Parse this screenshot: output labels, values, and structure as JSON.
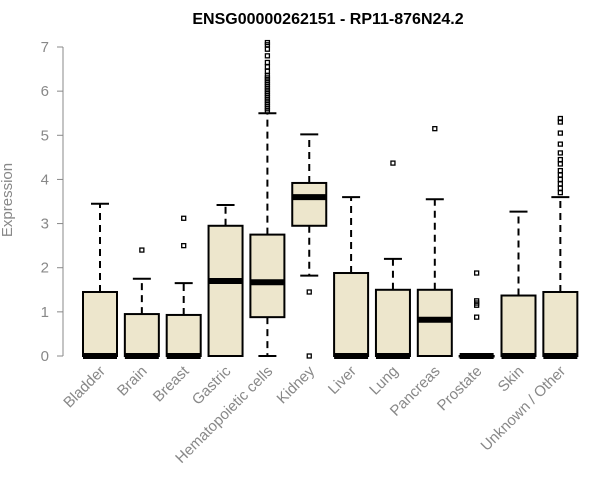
{
  "chart_data": {
    "type": "boxplot",
    "title": "ENSG00000262151 - RP11-876N24.2",
    "ylabel": "Expression",
    "xlabel": "",
    "ylim": [
      0,
      7
    ],
    "yticks": [
      0,
      1,
      2,
      3,
      4,
      5,
      6,
      7
    ],
    "grid": false,
    "colors": {
      "box_fill": "#EDE6CC",
      "box_stroke": "#000000",
      "axis": "#888888",
      "text": "#888888"
    },
    "categories": [
      "Bladder",
      "Brain",
      "Breast",
      "Gastric",
      "Hematopoietic cells",
      "Kidney",
      "Liver",
      "Lung",
      "Pancreas",
      "Prostate",
      "Skin",
      "Unknown / Other"
    ],
    "boxes": [
      {
        "name": "Bladder",
        "min": 0,
        "q1": 0,
        "median": 0,
        "q3": 1.45,
        "max": 3.45,
        "outliers": []
      },
      {
        "name": "Brain",
        "min": 0,
        "q1": 0,
        "median": 0,
        "q3": 0.95,
        "max": 1.75,
        "outliers": [
          2.4
        ]
      },
      {
        "name": "Breast",
        "min": 0,
        "q1": 0,
        "median": 0,
        "q3": 0.93,
        "max": 1.65,
        "outliers": [
          2.5,
          3.12
        ]
      },
      {
        "name": "Gastric",
        "min": 0,
        "q1": 0,
        "median": 1.7,
        "q3": 2.95,
        "max": 3.42,
        "outliers": []
      },
      {
        "name": "Hematopoietic cells",
        "min": 0,
        "q1": 0.88,
        "median": 1.67,
        "q3": 2.75,
        "max": 5.5,
        "outliers": [
          5.55,
          5.6,
          5.65,
          5.7,
          5.75,
          5.8,
          5.85,
          5.9,
          5.95,
          6.0,
          6.05,
          6.1,
          6.15,
          6.2,
          6.25,
          6.3,
          6.35,
          6.45,
          6.55,
          6.65,
          6.8,
          6.95,
          7.05,
          7.1
        ]
      },
      {
        "name": "Kidney",
        "min": 1.82,
        "q1": 2.95,
        "median": 3.6,
        "q3": 3.92,
        "max": 5.02,
        "outliers": [
          1.45,
          0.0
        ]
      },
      {
        "name": "Liver",
        "min": 0,
        "q1": 0,
        "median": 0,
        "q3": 1.88,
        "max": 3.6,
        "outliers": []
      },
      {
        "name": "Lung",
        "min": 0,
        "q1": 0,
        "median": 0,
        "q3": 1.5,
        "max": 2.2,
        "outliers": [
          4.37
        ]
      },
      {
        "name": "Pancreas",
        "min": 0,
        "q1": 0,
        "median": 0.82,
        "q3": 1.5,
        "max": 3.55,
        "outliers": [
          5.15
        ]
      },
      {
        "name": "Prostate",
        "min": 0,
        "q1": 0,
        "median": 0,
        "q3": 0,
        "max": 0,
        "outliers": [
          1.88,
          1.25,
          1.2,
          1.15,
          0.88
        ]
      },
      {
        "name": "Skin",
        "min": 0,
        "q1": 0,
        "median": 0,
        "q3": 1.37,
        "max": 3.27,
        "outliers": []
      },
      {
        "name": "Unknown / Other",
        "min": 0,
        "q1": 0,
        "median": 0,
        "q3": 1.45,
        "max": 3.6,
        "outliers": [
          3.7,
          3.8,
          3.9,
          4.0,
          4.1,
          4.2,
          4.35,
          4.45,
          4.6,
          4.8,
          5.05,
          5.3,
          5.38
        ]
      }
    ]
  }
}
